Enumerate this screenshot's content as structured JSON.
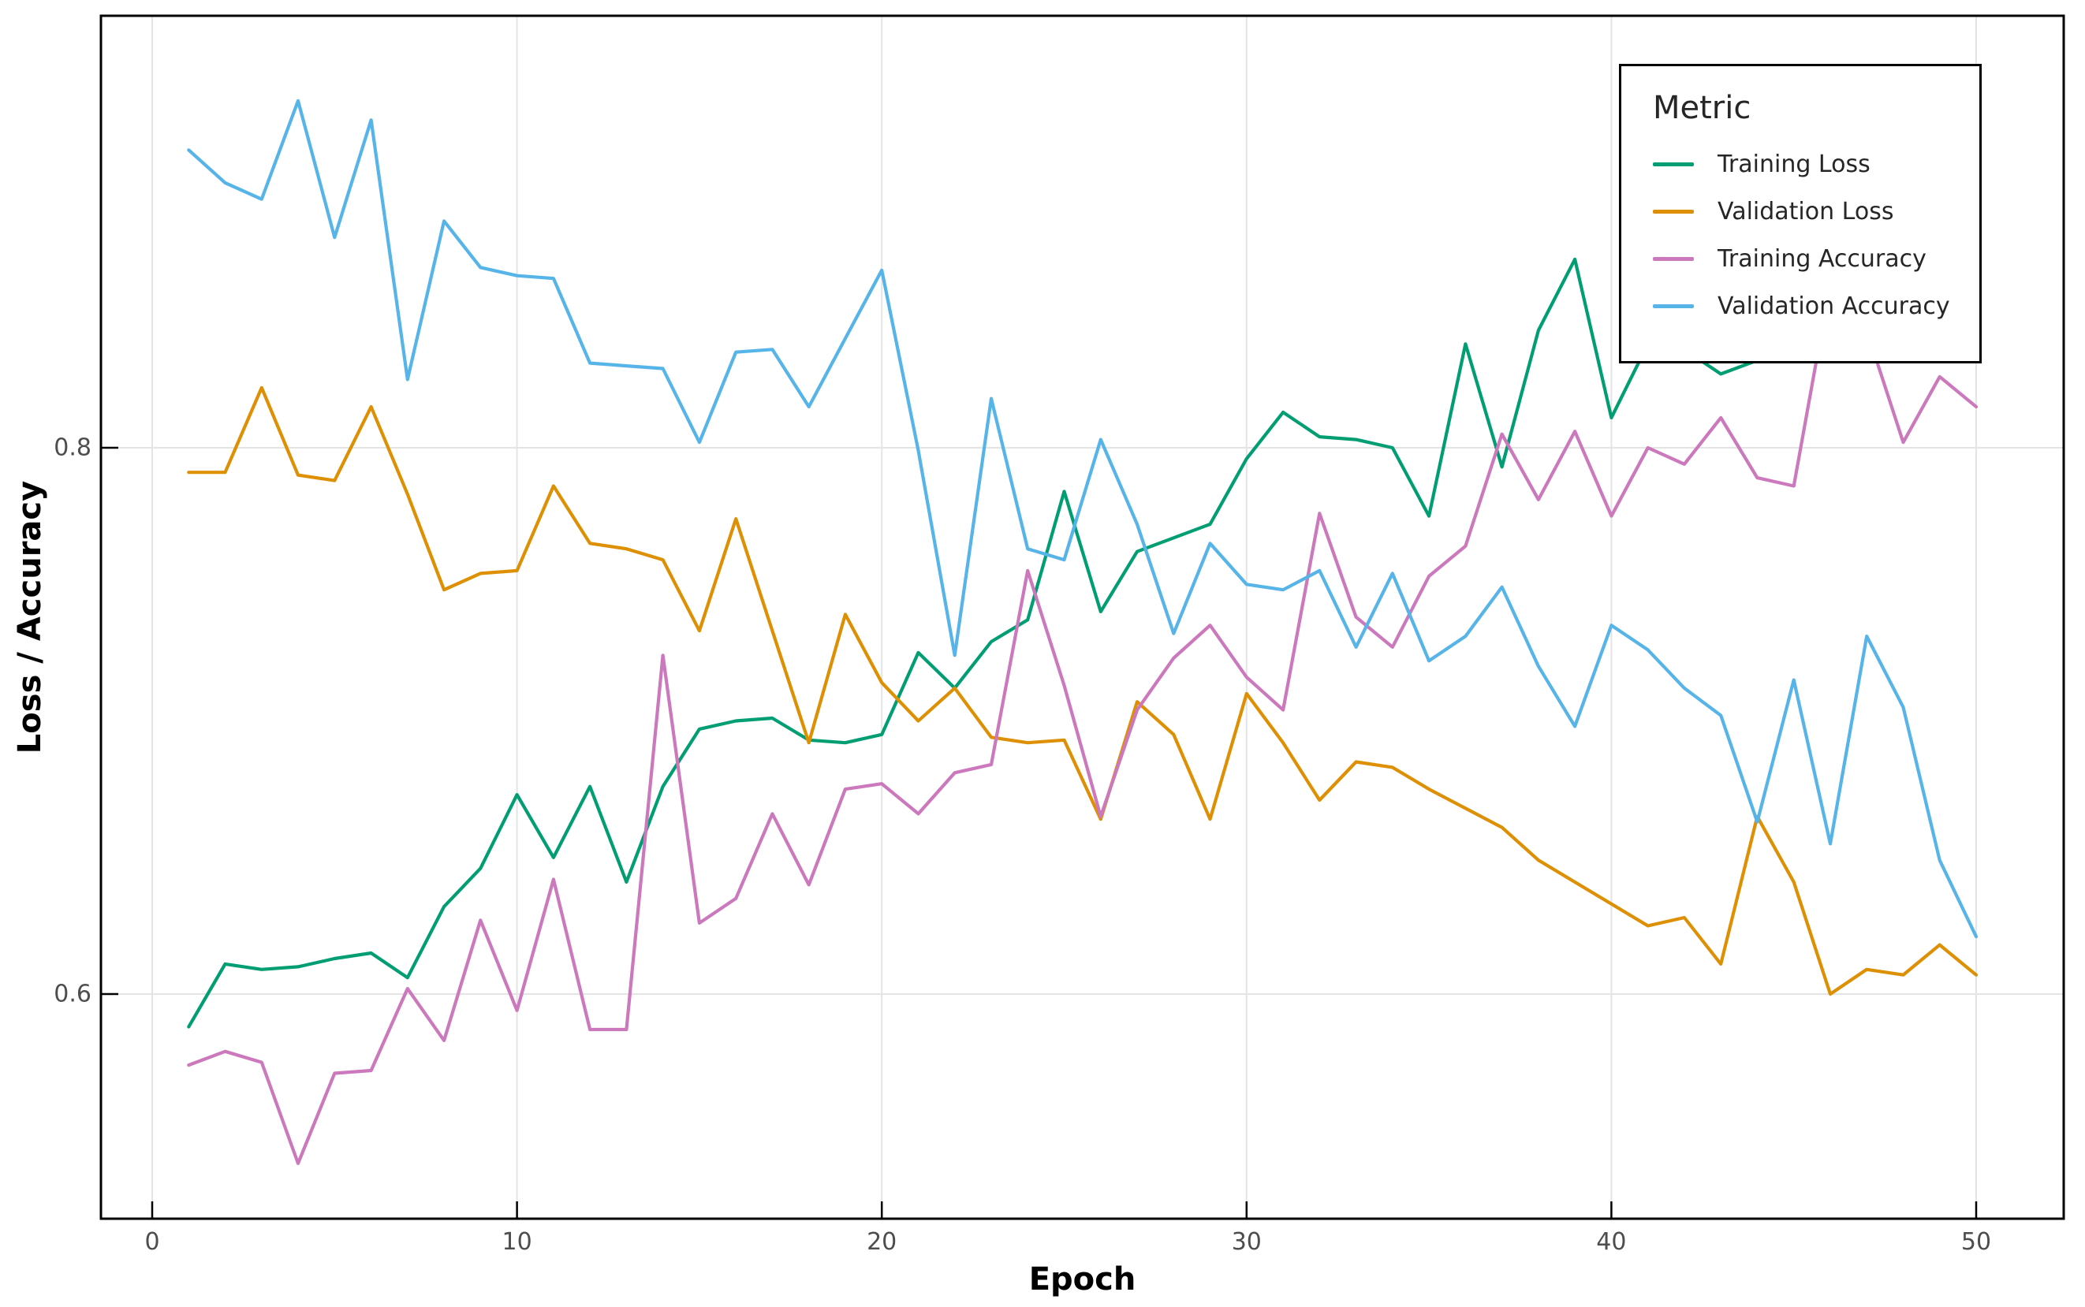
{
  "chart_data": {
    "type": "line",
    "title": "",
    "xlabel": "Epoch",
    "ylabel": "Loss / Accuracy",
    "x_ticks": {
      "labels": [
        "0",
        "10",
        "20",
        "30",
        "40",
        "50"
      ],
      "values": [
        0,
        10,
        20,
        30,
        40,
        50
      ]
    },
    "y_ticks": {
      "labels": [
        "0.6",
        "0.8"
      ],
      "values": [
        0.6,
        0.8
      ]
    },
    "xlim": [
      -1.4,
      52.4
    ],
    "ylim": [
      0.518,
      0.958
    ],
    "grid": true,
    "gridline_color": "#e4e4e4",
    "spine_color": "#000000",
    "tick_label_color": "#4d4d4d",
    "x": [
      1,
      2,
      3,
      4,
      5,
      6,
      7,
      8,
      9,
      10,
      11,
      12,
      13,
      14,
      15,
      16,
      17,
      18,
      19,
      20,
      21,
      22,
      23,
      24,
      25,
      26,
      27,
      28,
      29,
      30,
      31,
      32,
      33,
      34,
      35,
      36,
      37,
      38,
      39,
      40,
      41,
      42,
      43,
      44,
      45,
      46,
      47,
      48,
      49,
      50
    ],
    "series": [
      {
        "name": "Training Loss",
        "color": "#029e73",
        "values": [
          0.588,
          0.611,
          0.609,
          0.61,
          0.613,
          0.615,
          0.606,
          0.632,
          0.646,
          0.673,
          0.65,
          0.676,
          0.641,
          0.676,
          0.697,
          0.7,
          0.701,
          0.693,
          0.692,
          0.695,
          0.725,
          0.712,
          0.729,
          0.737,
          0.784,
          0.74,
          0.762,
          0.767,
          0.772,
          0.796,
          0.813,
          0.804,
          0.803,
          0.8,
          0.775,
          0.838,
          0.793,
          0.843,
          0.869,
          0.811,
          0.838,
          0.836,
          0.827,
          0.832,
          0.848,
          0.862,
          0.855,
          0.872,
          0.858,
          0.868
        ]
      },
      {
        "name": "Validation Loss",
        "color": "#de9005",
        "values": [
          0.791,
          0.791,
          0.822,
          0.79,
          0.788,
          0.815,
          0.783,
          0.748,
          0.754,
          0.755,
          0.786,
          0.765,
          0.763,
          0.759,
          0.733,
          0.774,
          0.733,
          0.692,
          0.739,
          0.714,
          0.7,
          0.712,
          0.694,
          0.692,
          0.693,
          0.664,
          0.707,
          0.695,
          0.664,
          0.71,
          0.692,
          0.671,
          0.685,
          0.683,
          0.675,
          0.668,
          0.661,
          0.649,
          0.641,
          0.633,
          0.625,
          0.628,
          0.611,
          0.665,
          0.641,
          0.6,
          0.609,
          0.607,
          0.618,
          0.607
        ]
      },
      {
        "name": "Training Accuracy",
        "color": "#cc78bc",
        "values": [
          0.574,
          0.579,
          0.575,
          0.538,
          0.571,
          0.572,
          0.602,
          0.583,
          0.627,
          0.594,
          0.642,
          0.587,
          0.587,
          0.724,
          0.626,
          0.635,
          0.666,
          0.64,
          0.675,
          0.677,
          0.666,
          0.681,
          0.684,
          0.755,
          0.713,
          0.665,
          0.704,
          0.723,
          0.735,
          0.716,
          0.704,
          0.776,
          0.738,
          0.727,
          0.753,
          0.764,
          0.805,
          0.781,
          0.806,
          0.775,
          0.8,
          0.794,
          0.811,
          0.789,
          0.786,
          0.86,
          0.843,
          0.802,
          0.826,
          0.815
        ]
      },
      {
        "name": "Validation Accuracy",
        "color": "#56b4e9",
        "values": [
          0.909,
          0.897,
          0.891,
          0.927,
          0.877,
          0.92,
          0.825,
          0.883,
          0.866,
          0.863,
          0.862,
          0.831,
          0.83,
          0.829,
          0.802,
          0.835,
          0.836,
          0.815,
          0.84,
          0.865,
          0.799,
          0.724,
          0.818,
          0.763,
          0.759,
          0.803,
          0.772,
          0.732,
          0.765,
          0.75,
          0.748,
          0.755,
          0.727,
          0.754,
          0.722,
          0.731,
          0.749,
          0.72,
          0.698,
          0.735,
          0.726,
          0.712,
          0.702,
          0.663,
          0.715,
          0.655,
          0.731,
          0.705,
          0.649,
          0.621
        ]
      }
    ],
    "legend": {
      "title": "Metric",
      "position": "upper right",
      "items": [
        {
          "label": "Training Loss",
          "color": "#029e73"
        },
        {
          "label": "Validation Loss",
          "color": "#de9005"
        },
        {
          "label": "Training Accuracy",
          "color": "#cc78bc"
        },
        {
          "label": "Validation Accuracy",
          "color": "#56b4e9"
        }
      ]
    }
  }
}
